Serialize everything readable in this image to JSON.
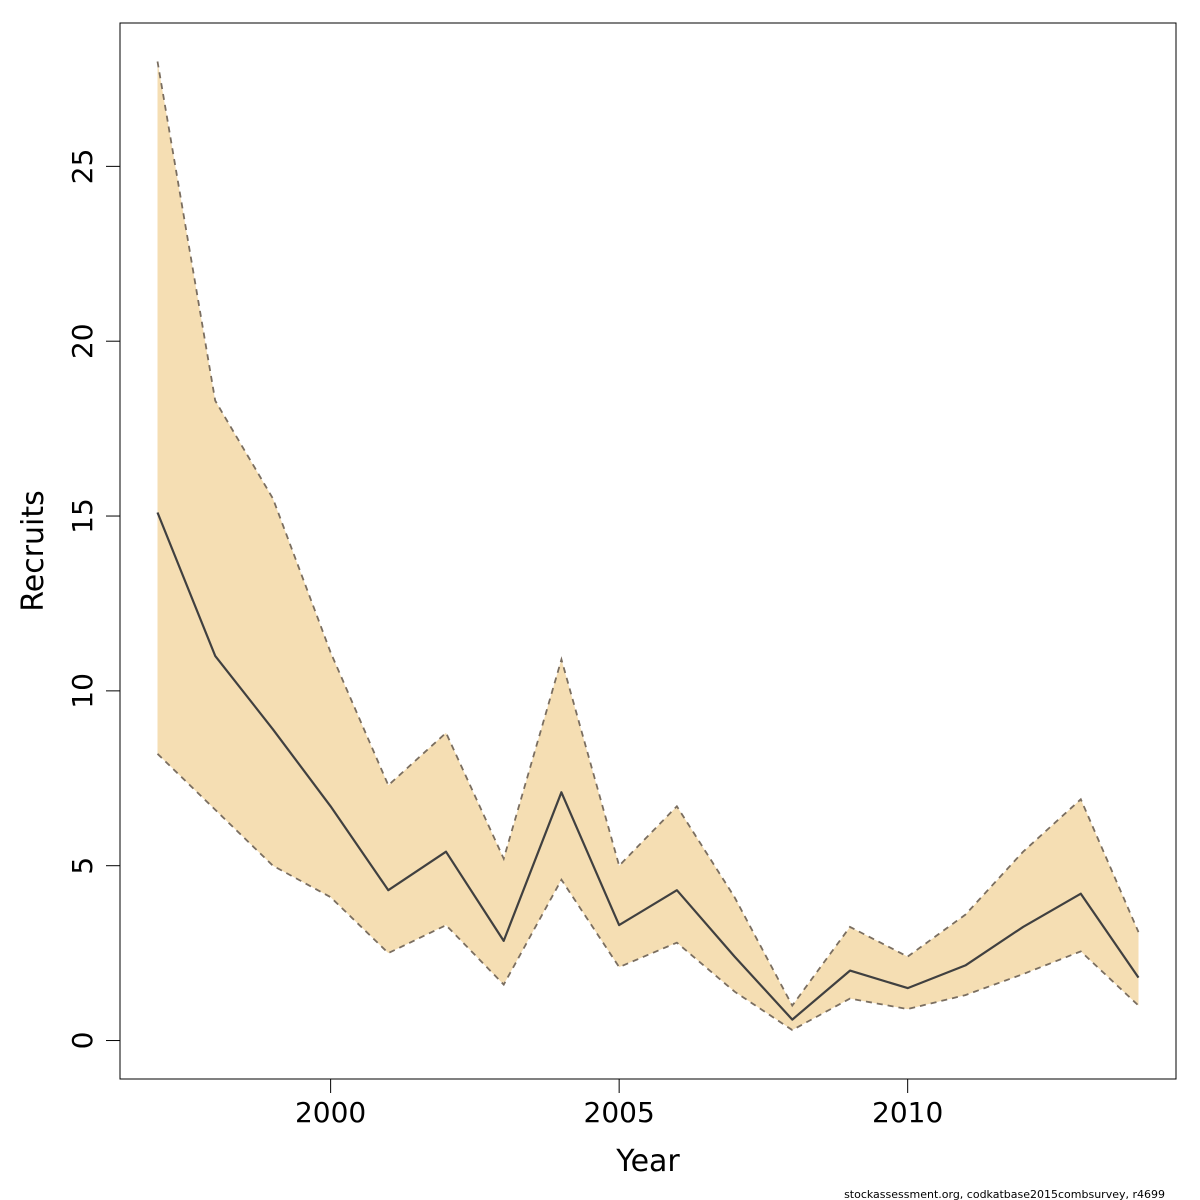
{
  "chart_data": {
    "type": "line",
    "xlabel": "Year",
    "ylabel": "Recruits",
    "xlim": [
      1996.35,
      2014.65
    ],
    "ylim": [
      -1.1,
      29.1
    ],
    "xticks": [
      2000,
      2005,
      2010
    ],
    "yticks": [
      0,
      5,
      10,
      15,
      20,
      25
    ],
    "grid": false,
    "x": [
      1997,
      1998,
      1999,
      2000,
      2001,
      2002,
      2003,
      2004,
      2005,
      2006,
      2007,
      2008,
      2009,
      2010,
      2011,
      2012,
      2013,
      2014
    ],
    "series": [
      {
        "values": [
          15.1,
          11.0,
          8.9,
          6.7,
          4.3,
          5.4,
          2.85,
          7.1,
          3.3,
          4.3,
          2.4,
          0.6,
          2.0,
          1.5,
          2.15,
          3.25,
          4.2,
          1.8
        ]
      }
    ],
    "band": {
      "upper": [
        28.0,
        18.3,
        15.5,
        11.1,
        7.3,
        8.8,
        5.2,
        10.9,
        5.0,
        6.7,
        4.1,
        1.0,
        3.25,
        2.4,
        3.6,
        5.4,
        6.9,
        3.1
      ],
      "lower": [
        8.2,
        6.6,
        5.0,
        4.1,
        2.5,
        3.3,
        1.6,
        4.6,
        2.1,
        2.8,
        1.4,
        0.3,
        1.2,
        0.9,
        1.3,
        1.9,
        2.55,
        1.0
      ]
    },
    "colors": {
      "band": "#f5deb3",
      "line": "#404040",
      "band_edge": "#7a6e60"
    },
    "footnote": "stockassessment.org, codkatbase2015combsurvey, r4699"
  }
}
